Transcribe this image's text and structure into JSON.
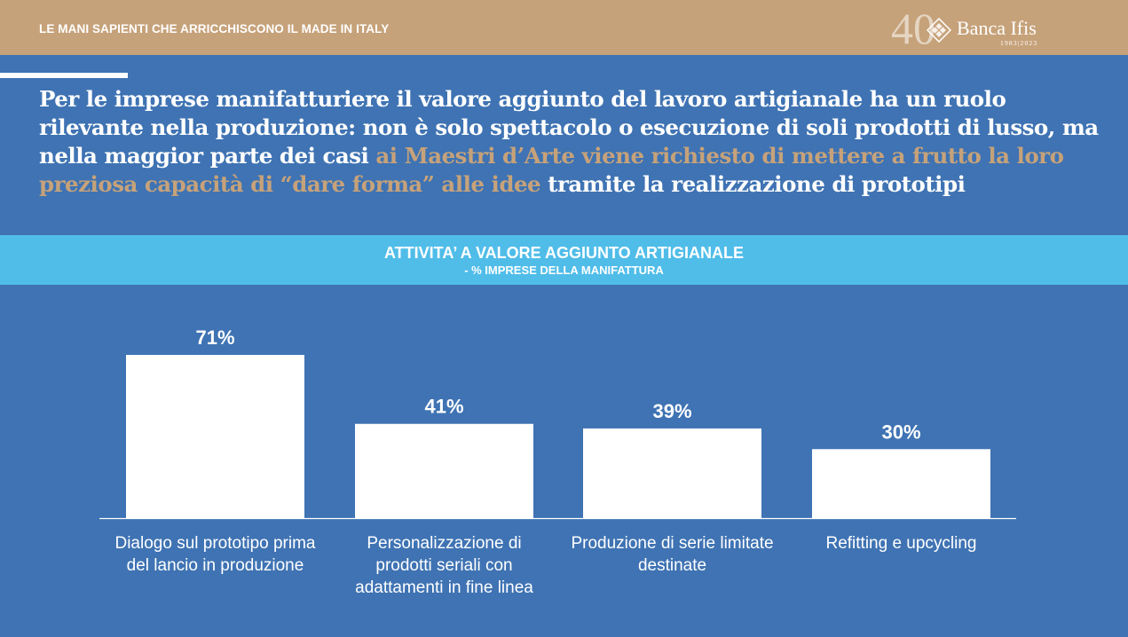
{
  "header": {
    "title": "LE MANI SAPIENTI CHE ARRICCHISCONO IL MADE IN ITALY",
    "logo": {
      "number": "40",
      "name": "Banca Ifis",
      "years": "1983|2023"
    }
  },
  "headline": {
    "part1": "Per le imprese manifatturiere il valore aggiunto del lavoro artigianale ha un ruolo rilevante nella produzione: non è solo spettacolo o esecuzione di soli prodotti di lusso, ma nella maggior parte dei casi ",
    "highlight": "ai Maestri d’Arte viene richiesto di mettere a frutto la loro preziosa capacità di “dare forma” alle idee",
    "part2": " tramite la realizzazione di prototipi"
  },
  "colors": {
    "background": "#3f73b3",
    "topbar": "#c6a27a",
    "highlight": "#c6a27a",
    "chart_header": "#50bde9",
    "bars": "#ffffff"
  },
  "chart_data": {
    "type": "bar",
    "title": "ATTIVITA’ A VALORE AGGIUNTO ARTIGIANALE",
    "subtitle": "- % IMPRESE DELLA MANIFATTURA",
    "categories": [
      "Dialogo sul prototipo prima del lancio in produzione",
      "Personalizzazione di prodotti seriali con adattamenti in fine linea",
      "Produzione di serie limitate destinate",
      "Refitting e upcycling"
    ],
    "values": [
      71,
      41,
      39,
      30
    ],
    "value_labels": [
      "71%",
      "41%",
      "39%",
      "30%"
    ],
    "ylim": [
      0,
      71
    ],
    "grid": false,
    "legend": "none"
  }
}
